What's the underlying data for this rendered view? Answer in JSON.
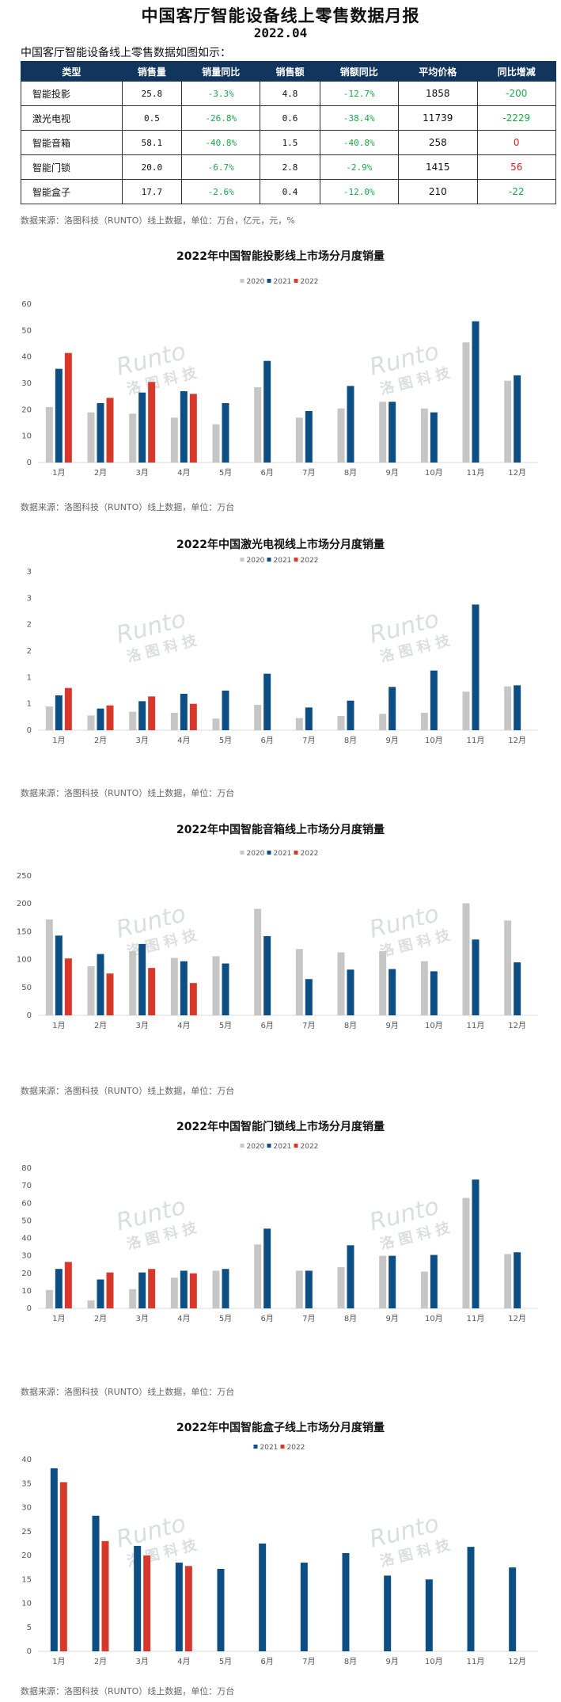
{
  "header": {
    "title": "中国客厅智能设备线上零售数据月报",
    "date": "2022.04",
    "intro": "中国客厅智能设备线上零售数据如图如示："
  },
  "summary_table": {
    "columns": [
      "类型",
      "销售量",
      "销量同比",
      "销售额",
      "销额同比",
      "平均价格",
      "同比增减"
    ],
    "rows": [
      {
        "category": "智能投影",
        "volume": "25.8",
        "volume_yoy": "-3.3%",
        "revenue": "4.8",
        "revenue_yoy": "-12.7%",
        "avg_price": "1858",
        "change": "-200"
      },
      {
        "category": "激光电视",
        "volume": "0.5",
        "volume_yoy": "-26.8%",
        "revenue": "0.6",
        "revenue_yoy": "-38.4%",
        "avg_price": "11739",
        "change": "-2229"
      },
      {
        "category": "智能音箱",
        "volume": "58.1",
        "volume_yoy": "-40.8%",
        "revenue": "1.5",
        "revenue_yoy": "-40.8%",
        "avg_price": "258",
        "change": "0"
      },
      {
        "category": "智能门锁",
        "volume": "20.0",
        "volume_yoy": "-6.7%",
        "revenue": "2.8",
        "revenue_yoy": "-2.9%",
        "avg_price": "1415",
        "change": "56"
      },
      {
        "category": "智能盒子",
        "volume": "17.7",
        "volume_yoy": "-2.6%",
        "revenue": "0.4",
        "revenue_yoy": "-12.0%",
        "avg_price": "210",
        "change": "-22"
      }
    ],
    "source_note": "数据来源：洛图科技（RUNTO）线上数据，单位：万台，亿元，元，%"
  },
  "colors": {
    "s2020": "#c6c6c6",
    "s2021": "#0d4f84",
    "s2022": "#d6392b",
    "negative": "#19a84a",
    "positive": "#e02020"
  },
  "watermark": {
    "brand": "Runto",
    "cn": "洛图科技"
  },
  "chart_data": [
    {
      "type": "bar",
      "title": "2022年中国智能投影线上市场分月度销量",
      "categories": [
        "1月",
        "2月",
        "3月",
        "4月",
        "5月",
        "6月",
        "7月",
        "8月",
        "9月",
        "10月",
        "11月",
        "12月"
      ],
      "ylim": [
        0,
        60
      ],
      "yticks": [
        0,
        10,
        20,
        30,
        40,
        50,
        60
      ],
      "ytick_labels": [
        "0",
        "10",
        "20",
        "30",
        "40",
        "50",
        "60"
      ],
      "grid": false,
      "legend_position": "top",
      "series": [
        {
          "name": "2020",
          "values": [
            21,
            19,
            18.5,
            17,
            14.5,
            28.5,
            17,
            20.5,
            23,
            20.5,
            45.5,
            31
          ]
        },
        {
          "name": "2021",
          "values": [
            35.5,
            22.5,
            26.5,
            27,
            22.5,
            38.5,
            19.5,
            29,
            23,
            19,
            53.5,
            33
          ]
        },
        {
          "name": "2022",
          "values": [
            41.5,
            24.5,
            30.5,
            26,
            null,
            null,
            null,
            null,
            null,
            null,
            null,
            null
          ]
        }
      ],
      "note": "数据来源：洛图科技（RUNTO）线上数据，单位：万台"
    },
    {
      "type": "bar",
      "title": "2022年中国激光电视线上市场分月度销量",
      "categories": [
        "1月",
        "2月",
        "3月",
        "4月",
        "5月",
        "6月",
        "7月",
        "8月",
        "9月",
        "10月",
        "11月",
        "12月"
      ],
      "ylim": [
        0,
        3
      ],
      "yticks": [
        0,
        0.5,
        1,
        1.5,
        2,
        2.5,
        3
      ],
      "ytick_labels": [
        "0",
        "1",
        "1",
        "2",
        "2",
        "3",
        "3"
      ],
      "grid": false,
      "legend_position": "top",
      "series": [
        {
          "name": "2020",
          "values": [
            0.45,
            0.28,
            0.35,
            0.33,
            0.22,
            0.48,
            0.23,
            0.27,
            0.31,
            0.33,
            0.73,
            0.83
          ]
        },
        {
          "name": "2021",
          "values": [
            0.66,
            0.41,
            0.55,
            0.69,
            0.75,
            1.07,
            0.43,
            0.56,
            0.82,
            1.13,
            2.38,
            0.85
          ]
        },
        {
          "name": "2022",
          "values": [
            0.8,
            0.47,
            0.64,
            0.5,
            null,
            null,
            null,
            null,
            null,
            null,
            null,
            null
          ]
        }
      ],
      "note": "数据来源：洛图科技（RUNTO）线上数据，单位：万台"
    },
    {
      "type": "bar",
      "title": "2022年中国智能音箱线上市场分月度销量",
      "categories": [
        "1月",
        "2月",
        "3月",
        "4月",
        "5月",
        "6月",
        "7月",
        "8月",
        "9月",
        "10月",
        "11月",
        "12月"
      ],
      "ylim": [
        0,
        250
      ],
      "yticks": [
        0,
        50,
        100,
        150,
        200,
        250
      ],
      "ytick_labels": [
        "0",
        "50",
        "100",
        "150",
        "200",
        "250"
      ],
      "grid": false,
      "legend_position": "top",
      "series": [
        {
          "name": "2020",
          "values": [
            172,
            88,
            115,
            103,
            106,
            191,
            119,
            113,
            115,
            97,
            201,
            170
          ]
        },
        {
          "name": "2021",
          "values": [
            143,
            110,
            128,
            97,
            93,
            142,
            65,
            82,
            83,
            79,
            136,
            95
          ]
        },
        {
          "name": "2022",
          "values": [
            102,
            75,
            85,
            58,
            null,
            null,
            null,
            null,
            null,
            null,
            null,
            null
          ]
        }
      ],
      "note": "数据来源：洛图科技（RUNTO）线上数据，单位：万台"
    },
    {
      "type": "bar",
      "title": "2022年中国智能门锁线上市场分月度销量",
      "categories": [
        "1月",
        "2月",
        "3月",
        "4月",
        "5月",
        "6月",
        "7月",
        "8月",
        "9月",
        "10月",
        "11月",
        "12月"
      ],
      "ylim": [
        0,
        80
      ],
      "yticks": [
        0,
        10,
        20,
        30,
        40,
        50,
        60,
        70,
        80
      ],
      "ytick_labels": [
        "0",
        "10",
        "20",
        "30",
        "40",
        "50",
        "60",
        "70",
        "80"
      ],
      "grid": false,
      "legend_position": "top",
      "series": [
        {
          "name": "2020",
          "values": [
            10.5,
            4.5,
            11,
            17.5,
            21.5,
            36.5,
            21.5,
            23.5,
            30,
            21,
            63,
            31
          ]
        },
        {
          "name": "2021",
          "values": [
            22.5,
            16.5,
            20.5,
            21.5,
            22.5,
            45.5,
            21.5,
            36,
            30,
            30.5,
            73.5,
            32
          ]
        },
        {
          "name": "2022",
          "values": [
            26.5,
            20.5,
            22.5,
            20,
            null,
            null,
            null,
            null,
            null,
            null,
            null,
            null
          ]
        }
      ],
      "note": "数据来源：洛图科技（RUNTO）线上数据，单位：万台"
    },
    {
      "type": "bar",
      "title": "2022年中国智能盒子线上市场分月度销量",
      "categories": [
        "1月",
        "2月",
        "3月",
        "4月",
        "5月",
        "6月",
        "7月",
        "8月",
        "9月",
        "10月",
        "11月",
        "12月"
      ],
      "ylim": [
        0,
        40
      ],
      "yticks": [
        0,
        5,
        10,
        15,
        20,
        25,
        30,
        35,
        40
      ],
      "ytick_labels": [
        "0",
        "5",
        "10",
        "15",
        "20",
        "25",
        "30",
        "35",
        "40"
      ],
      "grid": false,
      "legend_position": "top",
      "series": [
        {
          "name": "2021",
          "values": [
            38.2,
            28.3,
            22,
            18.5,
            17.2,
            22.5,
            18.5,
            20.5,
            15.8,
            15,
            21.8,
            17.5
          ]
        },
        {
          "name": "2022",
          "values": [
            35.3,
            23,
            20,
            17.8,
            null,
            null,
            null,
            null,
            null,
            null,
            null,
            null
          ]
        }
      ],
      "note": "数据来源：洛图科技（RUNTO）线上数据，单位：万台"
    }
  ]
}
